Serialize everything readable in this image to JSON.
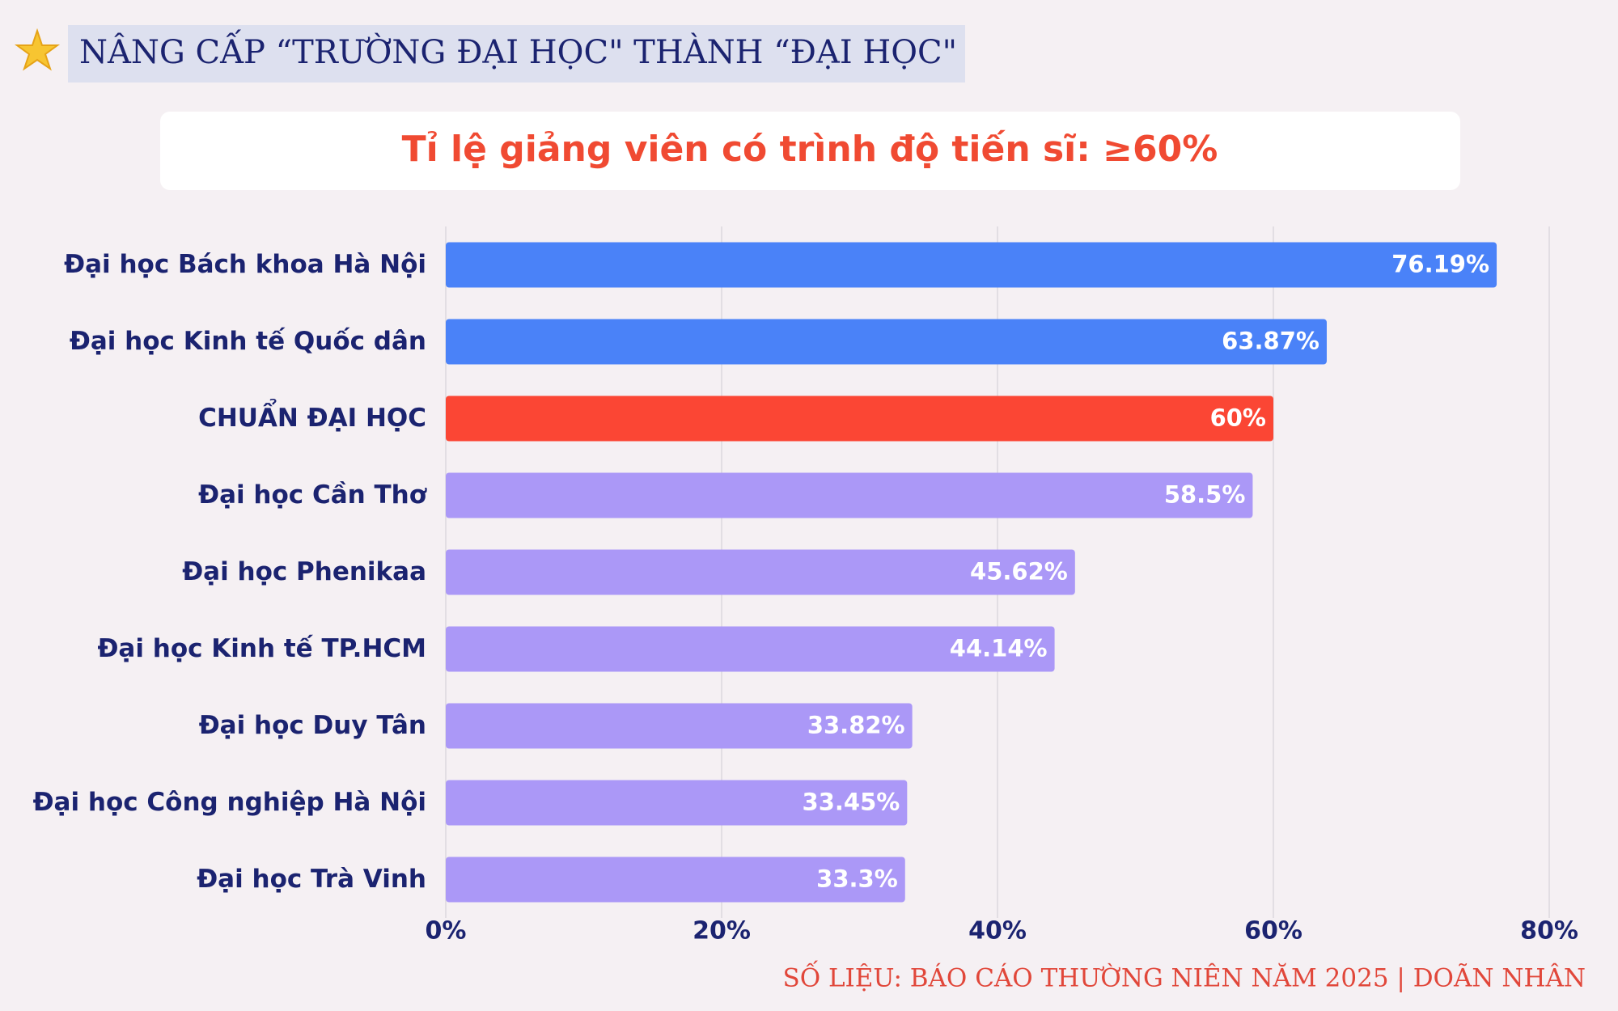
{
  "header": {
    "title": "NÂNG CẤP “TRƯỜNG ĐẠI HỌC\" THÀNH “ĐẠI HỌC\""
  },
  "chart_data": {
    "type": "bar",
    "title": "Tỉ lệ giảng viên có trình độ tiến sĩ: ≥60%",
    "categories": [
      "Đại học Bách khoa Hà Nội",
      "Đại học Kinh tế Quốc dân",
      "CHUẨN ĐẠI HỌC",
      "Đại học Cần Thơ",
      "Đại học Phenikaa",
      "Đại học Kinh tế TP.HCM",
      "Đại học Duy Tân",
      "Đại học Công nghiệp Hà Nội",
      "Đại học Trà Vinh"
    ],
    "values": [
      76.19,
      63.87,
      60,
      58.5,
      45.62,
      44.14,
      33.82,
      33.45,
      33.3
    ],
    "value_labels": [
      "76.19%",
      "63.87%",
      "60%",
      "58.5%",
      "45.62%",
      "44.14%",
      "33.82%",
      "33.45%",
      "33.3%"
    ],
    "colors": [
      "#4a82f8",
      "#4a82f8",
      "#fb4634",
      "#ab98f7",
      "#ab98f7",
      "#ab98f7",
      "#ab98f7",
      "#ab98f7",
      "#ab98f7"
    ],
    "xlim": [
      0,
      80
    ],
    "xticks": [
      {
        "value": 0,
        "label": "0%"
      },
      {
        "value": 20,
        "label": "20%"
      },
      {
        "value": 40,
        "label": "40%"
      },
      {
        "value": 60,
        "label": "60%"
      },
      {
        "value": 80,
        "label": "80%"
      }
    ],
    "grid": true
  },
  "footer": {
    "source": "SỐ LIỆU: BÁO CÁO THƯỜNG NIÊN NĂM 2025 | DOÃN NHÂN"
  }
}
